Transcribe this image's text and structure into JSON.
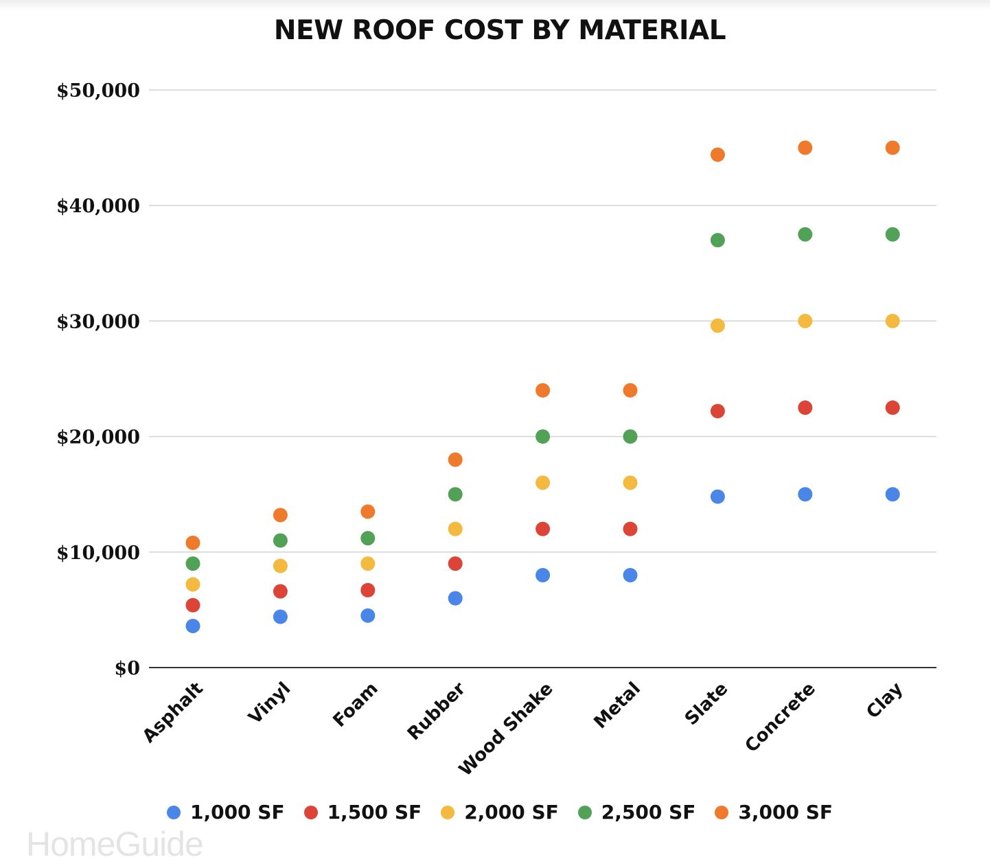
{
  "title": "NEW ROOF COST BY MATERIAL",
  "brand": "HomeGuide",
  "colors": {
    "1,000 SF": "#4a86e8",
    "1,500 SF": "#db4437",
    "2,000 SF": "#f4b93f",
    "2,500 SF": "#51a156",
    "3,000 SF": "#f07a2c",
    "grid": "#d3d3d3",
    "axis": "#333333"
  },
  "chart_data": {
    "type": "scatter",
    "title": "NEW ROOF COST BY MATERIAL",
    "xlabel": "",
    "ylabel": "",
    "categories": [
      "Asphalt",
      "Vinyl",
      "Foam",
      "Rubber",
      "Wood Shake",
      "Metal",
      "Slate",
      "Concrete",
      "Clay"
    ],
    "y_ticks": [
      "$0",
      "$10,000",
      "$20,000",
      "$30,000",
      "$40,000",
      "$50,000"
    ],
    "ylim": [
      0,
      50000
    ],
    "grid": true,
    "legend_position": "bottom",
    "series": [
      {
        "name": "1,000 SF",
        "values": [
          3600,
          4400,
          4500,
          6000,
          8000,
          8000,
          14800,
          15000,
          15000
        ]
      },
      {
        "name": "1,500 SF",
        "values": [
          5400,
          6600,
          6700,
          9000,
          12000,
          12000,
          22200,
          22500,
          22500
        ]
      },
      {
        "name": "2,000 SF",
        "values": [
          7200,
          8800,
          9000,
          12000,
          16000,
          16000,
          29600,
          30000,
          30000
        ]
      },
      {
        "name": "2,500 SF",
        "values": [
          9000,
          11000,
          11200,
          15000,
          20000,
          20000,
          37000,
          37500,
          37500
        ]
      },
      {
        "name": "3,000 SF",
        "values": [
          10800,
          13200,
          13500,
          18000,
          24000,
          24000,
          44400,
          45000,
          45000
        ]
      }
    ]
  }
}
